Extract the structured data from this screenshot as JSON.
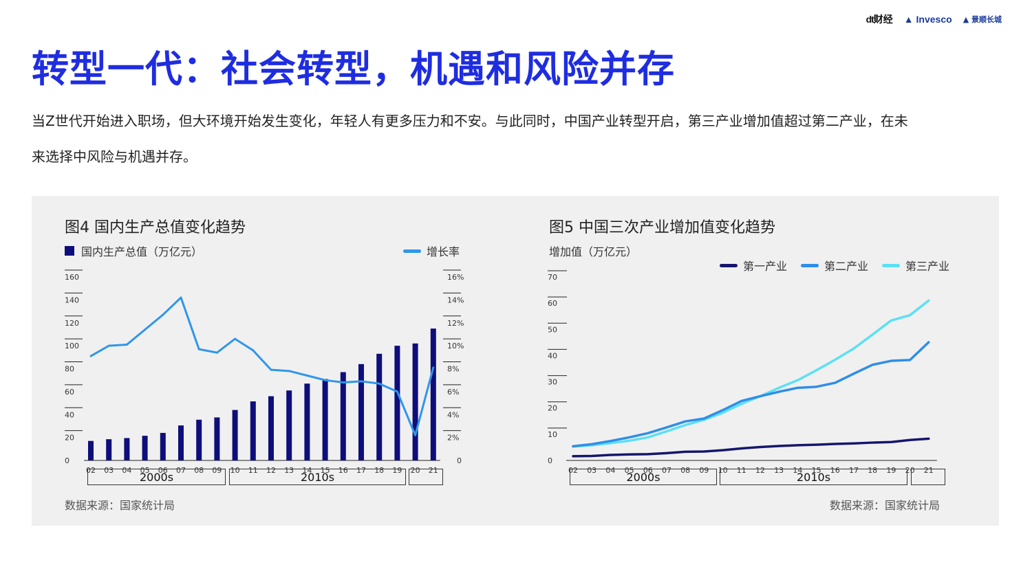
{
  "logos": {
    "dt_mark": "dt",
    "dt_text": "财经",
    "invesco": "Invesco",
    "jsh_text": "景顺长城"
  },
  "title": "转型一代：社会转型，机遇和风险并存",
  "intro": "当Z世代开始进入职场，但大环境开始发生变化，年轻人有更多压力和不安。与此同时，中国产业转型开启，第三产业增加值超过第二产业，在未来选择中风险与机遇并存。",
  "colors": {
    "title_blue": "#1f2de0",
    "bar_navy": "#0e0e7a",
    "growth_blue": "#2f96ea",
    "primary_navy": "#16166e",
    "secondary_blue": "#2f8ee8",
    "tertiary_cyan": "#5ce0f5",
    "panel_bg": "#f0f0f0"
  },
  "chart_data": [
    {
      "type": "bar",
      "title": "图4 国内生产总值变化趋势",
      "categories": [
        "02",
        "03",
        "04",
        "05",
        "06",
        "07",
        "08",
        "09",
        "10",
        "11",
        "12",
        "13",
        "14",
        "15",
        "16",
        "17",
        "18",
        "19",
        "20",
        "21"
      ],
      "series": [
        {
          "name": "国内生产总值（万亿元）",
          "type": "bar",
          "axis": "left",
          "values": [
            17,
            18.5,
            19.5,
            21.5,
            24,
            30.5,
            35.5,
            37.5,
            44,
            51.5,
            56,
            61,
            67,
            71,
            77,
            84,
            93,
            100,
            102,
            115
          ]
        },
        {
          "name": "增长率",
          "type": "line",
          "axis": "right",
          "values": [
            9.1,
            10.0,
            10.1,
            11.4,
            12.7,
            14.2,
            9.7,
            9.4,
            10.6,
            9.6,
            7.9,
            7.8,
            7.4,
            7.0,
            6.8,
            6.9,
            6.7,
            6.0,
            2.2,
            8.1
          ]
        }
      ],
      "y_left": {
        "ylim": [
          0,
          160
        ],
        "ticks": [
          "0",
          "20",
          "40",
          "60",
          "80",
          "100",
          "120",
          "140",
          "160"
        ]
      },
      "y_right": {
        "ylim": [
          0,
          16
        ],
        "ticks": [
          "0",
          "2%",
          "4%",
          "6%",
          "8%",
          "10%",
          "12%",
          "14%",
          "16%"
        ]
      },
      "decades": [
        "2000s",
        "2010s",
        ""
      ],
      "source": "数据来源：国家统计局",
      "legend": "top"
    },
    {
      "type": "line",
      "title": "图5 中国三次产业增加值变化趋势",
      "ylabel": "增加值（万亿元）",
      "categories": [
        "02",
        "03",
        "04",
        "05",
        "06",
        "07",
        "08",
        "09",
        "10",
        "11",
        "12",
        "13",
        "14",
        "15",
        "16",
        "17",
        "18",
        "19",
        "20",
        "21"
      ],
      "series": [
        {
          "name": "第一产业",
          "values": [
            1.6,
            1.7,
            2.1,
            2.3,
            2.4,
            2.8,
            3.3,
            3.4,
            3.9,
            4.6,
            5.1,
            5.5,
            5.8,
            6.0,
            6.3,
            6.5,
            6.8,
            7.0,
            7.8,
            8.3
          ]
        },
        {
          "name": "第二产业",
          "values": [
            5.4,
            6.2,
            7.4,
            8.8,
            10.4,
            12.6,
            14.9,
            16.0,
            19.2,
            22.7,
            24.5,
            26.2,
            27.7,
            28.1,
            29.6,
            33.1,
            36.5,
            38.0,
            38.3,
            45.1
          ]
        },
        {
          "name": "第三产业",
          "values": [
            5.3,
            5.8,
            6.6,
            7.5,
            8.8,
            11.1,
            13.5,
            15.5,
            18.2,
            21.6,
            24.5,
            27.7,
            30.6,
            34.4,
            38.4,
            42.7,
            48.0,
            53.4,
            55.4,
            61.0
          ]
        }
      ],
      "ylim": [
        0,
        70
      ],
      "yticks": [
        "0",
        "10",
        "20",
        "30",
        "40",
        "50",
        "60",
        "70"
      ],
      "decades": [
        "2000s",
        "2010s",
        ""
      ],
      "source": "数据来源：国家统计局",
      "legend": "top-right"
    }
  ]
}
